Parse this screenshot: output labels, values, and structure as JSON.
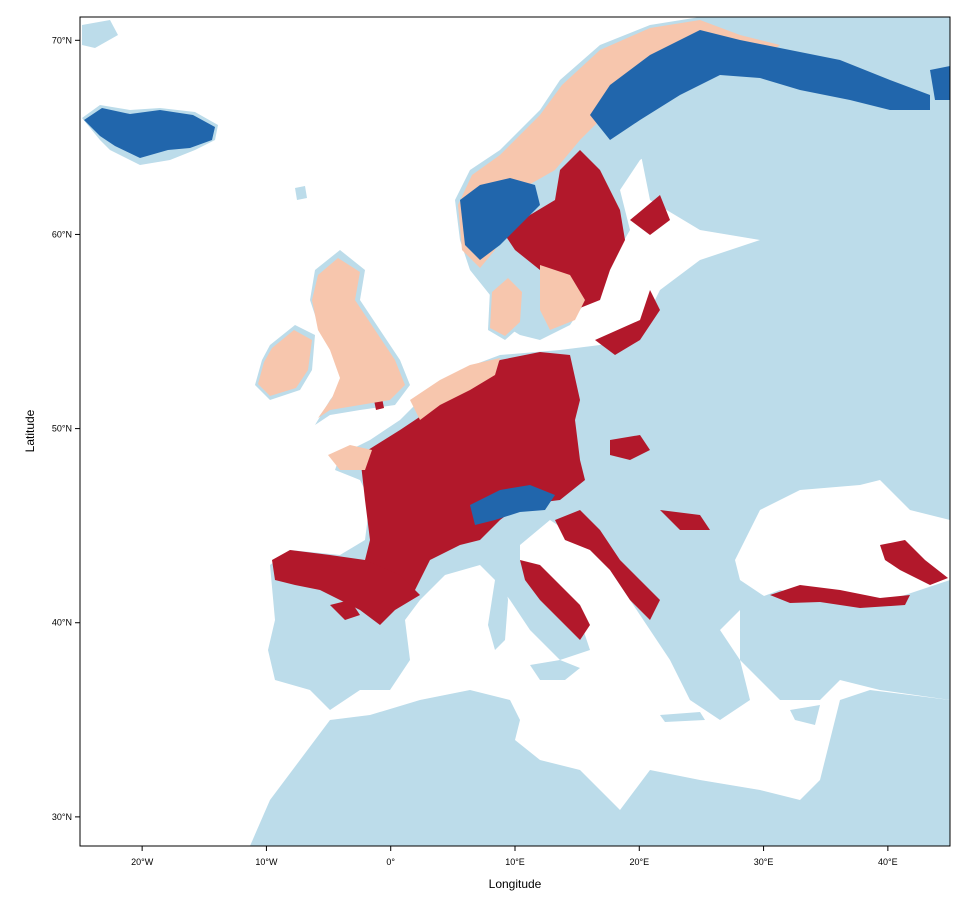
{
  "plot": {
    "xlabel": "Longitude",
    "ylabel": "Latitude",
    "xlim": [
      -25,
      45
    ],
    "ylim": [
      28.5,
      71.2
    ],
    "x_ticks": [
      {
        "value": -20,
        "label": "20°W"
      },
      {
        "value": -10,
        "label": "10°W"
      },
      {
        "value": 0,
        "label": "0°"
      },
      {
        "value": 10,
        "label": "10°E"
      },
      {
        "value": 20,
        "label": "20°E"
      },
      {
        "value": 30,
        "label": "30°E"
      },
      {
        "value": 40,
        "label": "40°E"
      }
    ],
    "y_ticks": [
      {
        "value": 70,
        "label": "70°N"
      },
      {
        "value": 60,
        "label": "60°N"
      },
      {
        "value": 50,
        "label": "50°N"
      },
      {
        "value": 40,
        "label": "40°N"
      },
      {
        "value": 30,
        "label": "30°N"
      }
    ]
  },
  "colors": {
    "land_background": "#bcdcea",
    "class_high": "#b2182b",
    "class_medium": "#f7c6ad",
    "class_low": "#2166ac",
    "sea": "#ffffff"
  },
  "map_layers": {
    "sea_color": "sea",
    "land_color": "land_background",
    "dark_red_color": "class_high",
    "salmon_color": "class_medium",
    "blue_color": "class_low"
  }
}
